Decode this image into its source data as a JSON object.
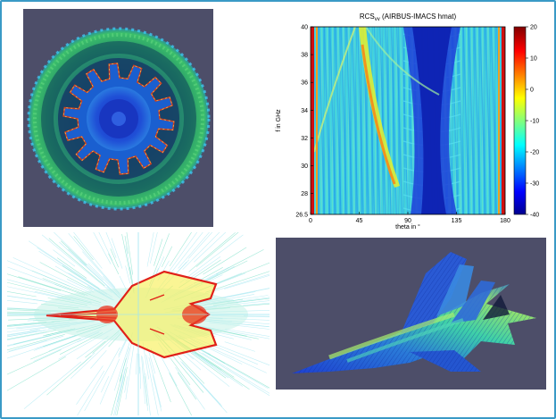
{
  "top_right_plot": {
    "title": "RCS",
    "title_sub": "vv",
    "title_suffix": "(AIRBUS-IMACS hmat)",
    "xlabel": "theta in °",
    "ylabel": "f in GHz",
    "x_ticks": [
      "0",
      "45",
      "90",
      "135",
      "180"
    ],
    "y_ticks": [
      "26.5",
      "28",
      "30",
      "32",
      "34",
      "36",
      "38",
      "40"
    ],
    "colorbar_ticks": [
      "20",
      "10",
      "0",
      "-10",
      "-20",
      "-30",
      "-40"
    ],
    "xlim": [
      0,
      180
    ],
    "ylim": [
      26.5,
      40
    ],
    "clim": [
      -40,
      20
    ]
  },
  "colors": {
    "frame": "#3a9ac6",
    "panel_bg": "#4d4e69"
  }
}
